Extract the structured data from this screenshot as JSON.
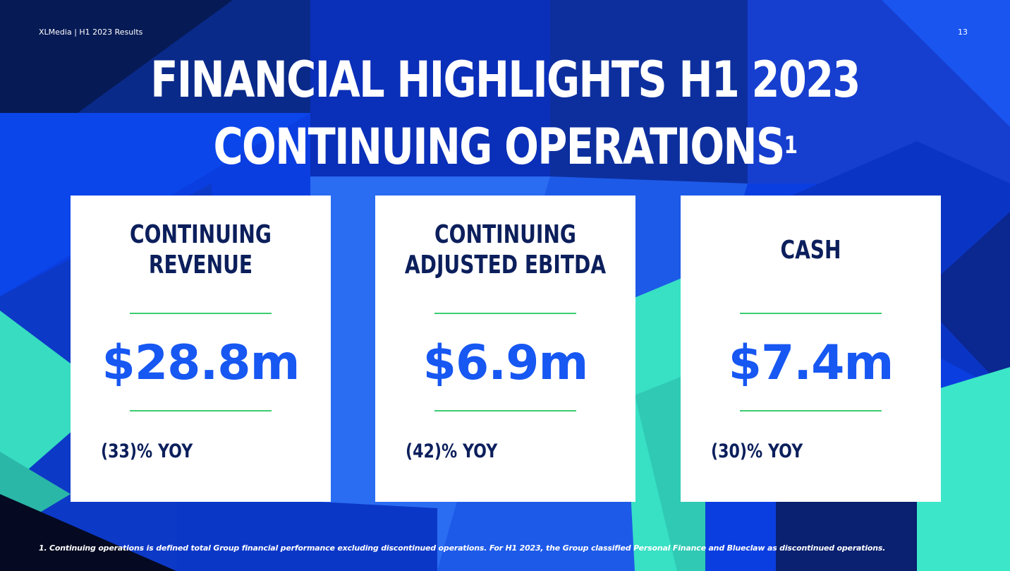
{
  "header": {
    "left_text": "XLMedia | H1 2023 Results",
    "page_number": "13"
  },
  "title": {
    "line1": "FINANCIAL HIGHLIGHTS H1 2023",
    "line2": "CONTINUING OPERATIONS",
    "superscript": "1"
  },
  "cards": [
    {
      "heading_line1": "CONTINUING",
      "heading_line2": "REVENUE",
      "value": "$28.8m",
      "change": "(33)% YOY"
    },
    {
      "heading_line1": "CONTINUING",
      "heading_line2": "ADJUSTED EBITDA",
      "value": "$6.9m",
      "change": "(42)% YOY"
    },
    {
      "heading": "CASH",
      "value": "$7.4m",
      "change": "(30)% YOY"
    }
  ],
  "footnote": "1. Continuing operations is defined total Group financial performance excluding discontinued operations. For H1 2023, the Group classified Personal Finance and Blueclaw as discontinued operations.",
  "colors": {
    "background_blue": "#0a3fe0",
    "dark_navy": "#0c1f5c",
    "accent_blue": "#1757f2",
    "accent_green": "#3ccc73",
    "teal": "#3ee6c4"
  }
}
